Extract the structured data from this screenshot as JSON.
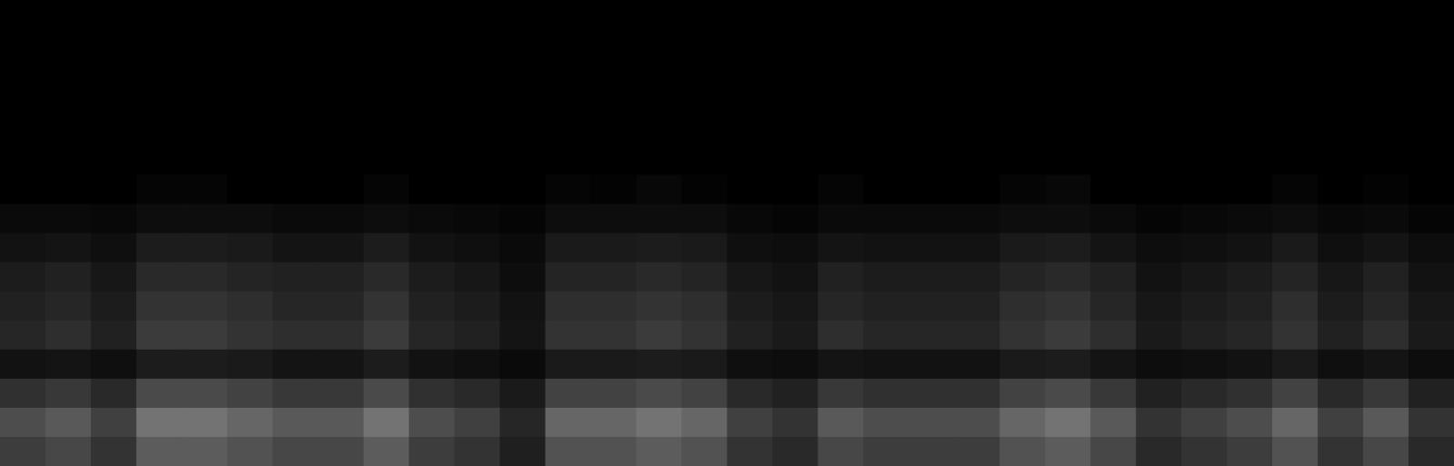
{
  "chart_data": {
    "type": "heatmap",
    "tick_labels": false,
    "xlim": [
      0,
      32
    ],
    "ylim": [
      0,
      16
    ],
    "cells": [
      [
        0,
        0,
        0,
        0,
        0,
        0,
        0,
        0,
        0,
        0,
        0,
        0,
        0,
        0,
        0,
        0,
        0,
        0,
        0,
        0,
        0,
        0,
        0,
        0,
        0,
        0,
        0,
        0,
        0,
        0,
        0,
        0
      ],
      [
        0,
        0,
        0,
        0,
        0,
        0,
        0,
        0,
        0,
        0,
        0,
        0,
        0,
        0,
        0,
        0,
        0,
        0,
        0,
        0,
        0,
        0,
        0,
        0,
        0,
        0,
        0,
        0,
        0,
        0,
        0,
        0
      ],
      [
        0,
        0,
        0,
        0,
        0,
        0,
        0,
        0,
        0,
        0,
        0,
        0,
        0,
        0,
        0,
        0,
        0,
        0,
        0,
        0,
        0,
        0,
        0,
        0,
        0,
        0,
        0,
        0,
        0,
        0,
        0,
        0
      ],
      [
        0,
        0,
        0,
        0,
        0,
        0,
        0,
        0,
        0,
        0,
        0,
        0,
        0,
        0,
        0,
        0,
        0,
        0,
        0,
        0,
        0,
        0,
        0,
        0,
        0,
        0,
        0,
        0,
        0,
        0,
        0,
        0
      ],
      [
        0,
        0,
        0,
        0,
        0,
        0,
        0,
        0,
        0,
        0,
        0,
        0,
        0,
        0,
        0,
        0,
        0,
        0,
        0,
        0,
        0,
        0,
        0,
        0,
        0,
        0,
        0,
        0,
        0,
        0,
        0,
        0
      ],
      [
        0,
        0,
        0,
        0,
        0,
        0,
        0,
        0,
        0,
        0,
        0,
        0,
        0,
        0,
        0,
        0,
        0,
        0,
        0,
        0,
        0,
        0,
        0,
        0,
        0,
        0,
        0,
        0,
        0,
        0,
        0,
        0
      ],
      [
        0,
        0,
        0,
        0.02,
        0.02,
        0,
        0,
        0,
        0.02,
        0,
        0,
        0,
        0.02,
        0.01,
        0.03,
        0.01,
        0,
        0,
        0.02,
        0,
        0,
        0,
        0.02,
        0.03,
        0,
        0,
        0,
        0,
        0.02,
        0,
        0.01,
        0
      ],
      [
        0.04,
        0.04,
        0.03,
        0.05,
        0.05,
        0.05,
        0.04,
        0.04,
        0.05,
        0.04,
        0.03,
        0.02,
        0.05,
        0.05,
        0.05,
        0.05,
        0.03,
        0.02,
        0.04,
        0.04,
        0.04,
        0.04,
        0.05,
        0.05,
        0.04,
        0.02,
        0.03,
        0.04,
        0.05,
        0.03,
        0.04,
        0.02
      ],
      [
        0.07,
        0.08,
        0.06,
        0.11,
        0.11,
        0.1,
        0.08,
        0.08,
        0.11,
        0.07,
        0.06,
        0.04,
        0.1,
        0.1,
        0.11,
        0.1,
        0.06,
        0.05,
        0.08,
        0.07,
        0.07,
        0.07,
        0.1,
        0.11,
        0.08,
        0.05,
        0.06,
        0.07,
        0.1,
        0.06,
        0.08,
        0.05
      ],
      [
        0.11,
        0.13,
        0.09,
        0.16,
        0.16,
        0.14,
        0.13,
        0.13,
        0.16,
        0.11,
        0.09,
        0.05,
        0.14,
        0.14,
        0.16,
        0.14,
        0.09,
        0.07,
        0.13,
        0.11,
        0.11,
        0.11,
        0.14,
        0.16,
        0.13,
        0.07,
        0.09,
        0.11,
        0.14,
        0.09,
        0.13,
        0.07
      ],
      [
        0.13,
        0.15,
        0.11,
        0.2,
        0.2,
        0.18,
        0.15,
        0.15,
        0.2,
        0.13,
        0.11,
        0.07,
        0.18,
        0.18,
        0.2,
        0.18,
        0.11,
        0.09,
        0.15,
        0.13,
        0.13,
        0.13,
        0.18,
        0.2,
        0.15,
        0.09,
        0.11,
        0.13,
        0.18,
        0.11,
        0.15,
        0.09
      ],
      [
        0.15,
        0.18,
        0.13,
        0.23,
        0.23,
        0.2,
        0.18,
        0.18,
        0.23,
        0.15,
        0.13,
        0.08,
        0.2,
        0.2,
        0.23,
        0.2,
        0.13,
        0.1,
        0.18,
        0.15,
        0.15,
        0.15,
        0.2,
        0.23,
        0.18,
        0.1,
        0.13,
        0.15,
        0.2,
        0.13,
        0.18,
        0.1
      ],
      [
        0.07,
        0.08,
        0.06,
        0.11,
        0.11,
        0.1,
        0.08,
        0.08,
        0.11,
        0.07,
        0.06,
        0.04,
        0.1,
        0.1,
        0.11,
        0.1,
        0.06,
        0.05,
        0.08,
        0.07,
        0.07,
        0.07,
        0.1,
        0.11,
        0.08,
        0.05,
        0.06,
        0.07,
        0.1,
        0.06,
        0.08,
        0.05
      ],
      [
        0.19,
        0.22,
        0.16,
        0.29,
        0.29,
        0.26,
        0.22,
        0.22,
        0.29,
        0.19,
        0.16,
        0.1,
        0.26,
        0.26,
        0.29,
        0.26,
        0.16,
        0.13,
        0.22,
        0.19,
        0.19,
        0.19,
        0.26,
        0.29,
        0.22,
        0.13,
        0.16,
        0.19,
        0.26,
        0.16,
        0.22,
        0.13
      ],
      [
        0.3,
        0.35,
        0.25,
        0.45,
        0.45,
        0.4,
        0.35,
        0.35,
        0.45,
        0.3,
        0.25,
        0.15,
        0.4,
        0.4,
        0.45,
        0.4,
        0.25,
        0.2,
        0.35,
        0.3,
        0.3,
        0.3,
        0.4,
        0.45,
        0.35,
        0.2,
        0.25,
        0.3,
        0.4,
        0.25,
        0.35,
        0.2
      ],
      [
        0.24,
        0.28,
        0.2,
        0.36,
        0.36,
        0.32,
        0.28,
        0.28,
        0.36,
        0.24,
        0.2,
        0.12,
        0.32,
        0.32,
        0.36,
        0.32,
        0.2,
        0.16,
        0.28,
        0.24,
        0.24,
        0.24,
        0.32,
        0.36,
        0.28,
        0.16,
        0.2,
        0.24,
        0.32,
        0.2,
        0.28,
        0.16
      ]
    ]
  }
}
